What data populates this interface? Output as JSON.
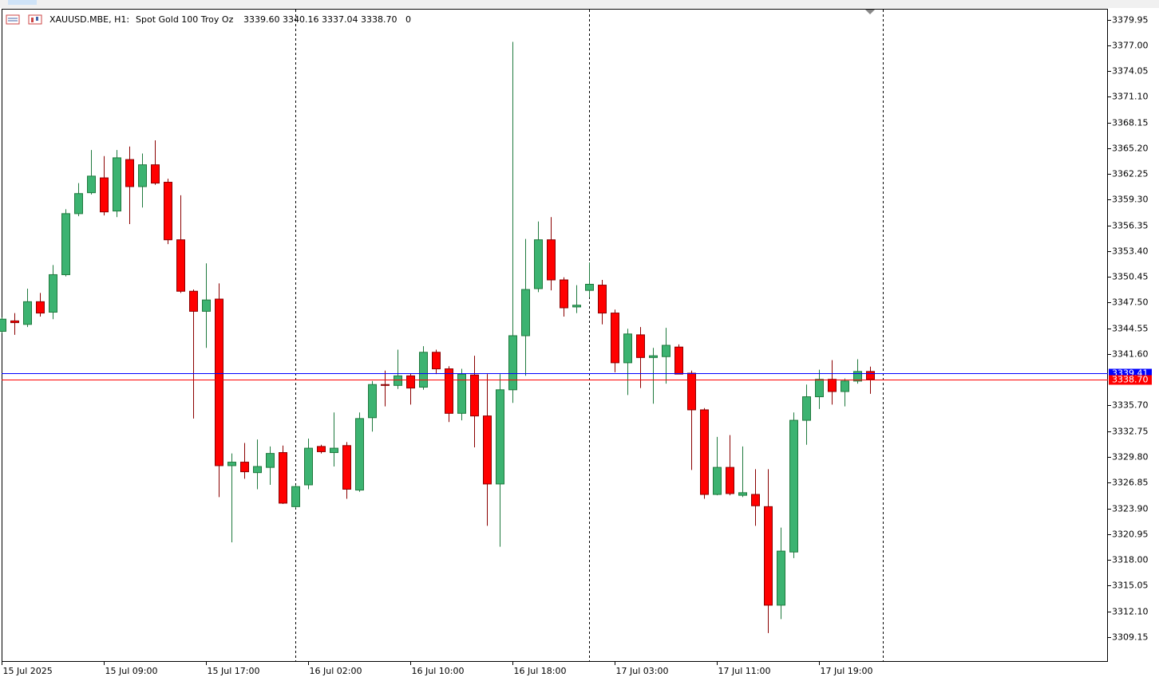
{
  "header": {
    "symbol": "XAUUSD.MBE, H1:",
    "description": "Spot Gold 100 Troy Oz",
    "ohlc": "3339.60 3340.16 3337.04 3338.70",
    "volume": "0"
  },
  "chart_data": {
    "type": "candlestick",
    "categories": [
      "15 Jul 2025",
      null,
      null,
      null,
      null,
      null,
      null,
      null,
      "15 Jul 09:00",
      null,
      null,
      null,
      null,
      null,
      null,
      null,
      "15 Jul 17:00",
      null,
      null,
      null,
      null,
      null,
      null,
      null,
      "16 Jul 02:00",
      null,
      null,
      null,
      null,
      null,
      null,
      null,
      "16 Jul 10:00",
      null,
      null,
      null,
      null,
      null,
      null,
      null,
      "16 Jul 18:00",
      null,
      null,
      null,
      null,
      null,
      null,
      null,
      "17 Jul 03:00",
      null,
      null,
      null,
      null,
      null,
      null,
      null,
      "17 Jul 11:00",
      null,
      null,
      null,
      null,
      null,
      null,
      null,
      "17 Jul 19:00",
      null,
      null,
      null,
      null
    ],
    "open": [
      3344.2,
      3345.4,
      3345.0,
      3347.6,
      3346.4,
      3350.7,
      3357.7,
      3360.1,
      3361.8,
      3358.0,
      3363.9,
      3360.8,
      3363.3,
      3361.3,
      3354.7,
      3348.8,
      3346.5,
      3347.9,
      3328.8,
      3329.2,
      3328.0,
      3328.6,
      3330.3,
      3324.1,
      3326.6,
      3331.0,
      3330.3,
      3331.1,
      3326.0,
      3334.3,
      3338.1,
      3338.0,
      3339.1,
      3337.8,
      3341.8,
      3339.9,
      3334.8,
      3339.2,
      3334.5,
      3326.7,
      3337.5,
      3343.7,
      3349.1,
      3354.7,
      3350.1,
      3347.0,
      3348.9,
      3349.5,
      3346.3,
      3340.6,
      3343.8,
      3341.2,
      3341.3,
      3342.4,
      3339.4,
      3335.2,
      3325.5,
      3328.6,
      3325.4,
      3325.5,
      3324.1,
      3312.8,
      3318.9,
      3334.0,
      3336.7,
      3338.7,
      3337.3,
      3338.5,
      3339.6
    ],
    "high": [
      3345.8,
      3346.3,
      3349.1,
      3348.6,
      3351.8,
      3358.2,
      3361.2,
      3365.0,
      3364.3,
      3365.0,
      3365.4,
      3364.6,
      3366.1,
      3361.7,
      3359.8,
      3349.0,
      3352.0,
      3349.7,
      3330.2,
      3331.4,
      3331.8,
      3331.0,
      3331.1,
      3326.6,
      3331.9,
      3331.2,
      3334.9,
      3331.5,
      3334.9,
      3338.5,
      3339.7,
      3342.1,
      3339.4,
      3342.5,
      3342.1,
      3340.2,
      3339.9,
      3341.4,
      3339.3,
      3339.3,
      3377.4,
      3354.8,
      3356.8,
      3357.3,
      3350.4,
      3349.5,
      3352.1,
      3350.1,
      3346.7,
      3344.5,
      3344.7,
      3342.3,
      3344.6,
      3342.7,
      3339.7,
      3335.4,
      3332.1,
      3332.3,
      3331.0,
      3328.4,
      3328.4,
      3321.7,
      3334.9,
      3338.1,
      3339.8,
      3340.9,
      3338.8,
      3341.0,
      3340.16
    ],
    "low": [
      3344.0,
      3343.8,
      3344.7,
      3345.9,
      3345.6,
      3350.5,
      3357.4,
      3359.9,
      3357.5,
      3357.3,
      3356.5,
      3358.4,
      3361.0,
      3354.2,
      3348.6,
      3334.2,
      3342.3,
      3325.2,
      3320.0,
      3327.3,
      3326.1,
      3326.6,
      3324.4,
      3323.9,
      3326.1,
      3330.2,
      3328.7,
      3325.0,
      3325.8,
      3332.7,
      3335.6,
      3337.6,
      3335.8,
      3337.5,
      3339.3,
      3333.8,
      3334.0,
      3330.9,
      3321.9,
      3319.5,
      3336.0,
      3339.1,
      3348.7,
      3348.9,
      3345.9,
      3346.3,
      3348.1,
      3345.0,
      3339.5,
      3336.9,
      3337.7,
      3335.9,
      3338.2,
      3339.3,
      3328.3,
      3325.0,
      3325.4,
      3325.4,
      3325.2,
      3321.9,
      3309.6,
      3311.2,
      3318.2,
      3331.2,
      3335.3,
      3335.8,
      3335.6,
      3338.2,
      3337.04
    ],
    "close": [
      3345.6,
      3345.2,
      3347.6,
      3346.3,
      3350.7,
      3357.7,
      3360.0,
      3362.0,
      3357.9,
      3364.1,
      3360.8,
      3363.3,
      3361.2,
      3354.7,
      3348.8,
      3346.5,
      3347.8,
      3328.8,
      3329.2,
      3328.1,
      3328.7,
      3330.2,
      3324.5,
      3326.4,
      3330.8,
      3330.4,
      3330.8,
      3326.1,
      3334.2,
      3338.1,
      3338.0,
      3339.1,
      3337.7,
      3341.8,
      3339.9,
      3334.8,
      3339.3,
      3334.5,
      3326.7,
      3337.5,
      3343.7,
      3349.0,
      3354.7,
      3350.1,
      3346.9,
      3347.2,
      3349.6,
      3346.3,
      3340.6,
      3343.9,
      3341.2,
      3341.4,
      3342.6,
      3339.3,
      3335.2,
      3325.5,
      3328.6,
      3325.6,
      3325.7,
      3324.2,
      3312.8,
      3319.0,
      3334.0,
      3336.7,
      3338.7,
      3337.3,
      3338.5,
      3339.6,
      3338.7
    ],
    "up_color": "#3cb371",
    "down_color": "#ff0000",
    "ylim": [
      3306.3,
      3381.1
    ],
    "yticks": [
      3379.95,
      {
        "value": 3377,
        "label": "3377.00"
      },
      3374.05,
      {
        "value": 3371.1,
        "label": "3371.10"
      },
      3368.15,
      {
        "value": 3365.2,
        "label": "3365.20"
      },
      3362.25,
      {
        "value": 3359.3,
        "label": "3359.30"
      },
      3356.35,
      {
        "value": 3353.4,
        "label": "3353.40"
      },
      3350.45,
      {
        "value": 3347.5,
        "label": "3347.50"
      },
      3344.55,
      {
        "value": 3341.6,
        "label": "3341.60"
      },
      {
        "value": 3335.7,
        "label": "3335.70"
      },
      3332.75,
      {
        "value": 3329.8,
        "label": "3329.80"
      },
      3326.85,
      {
        "value": 3323.9,
        "label": "3323.90"
      },
      3320.95,
      {
        "value": 3318,
        "label": "3318.00"
      },
      3315.05,
      {
        "value": 3312.1,
        "label": "3312.10"
      },
      3309.15
    ],
    "price_lines": [
      {
        "value": 3339.41,
        "color": "#0000ff"
      },
      {
        "value": 3338.7,
        "label": "3338.70",
        "color": "#ff0000"
      }
    ]
  }
}
